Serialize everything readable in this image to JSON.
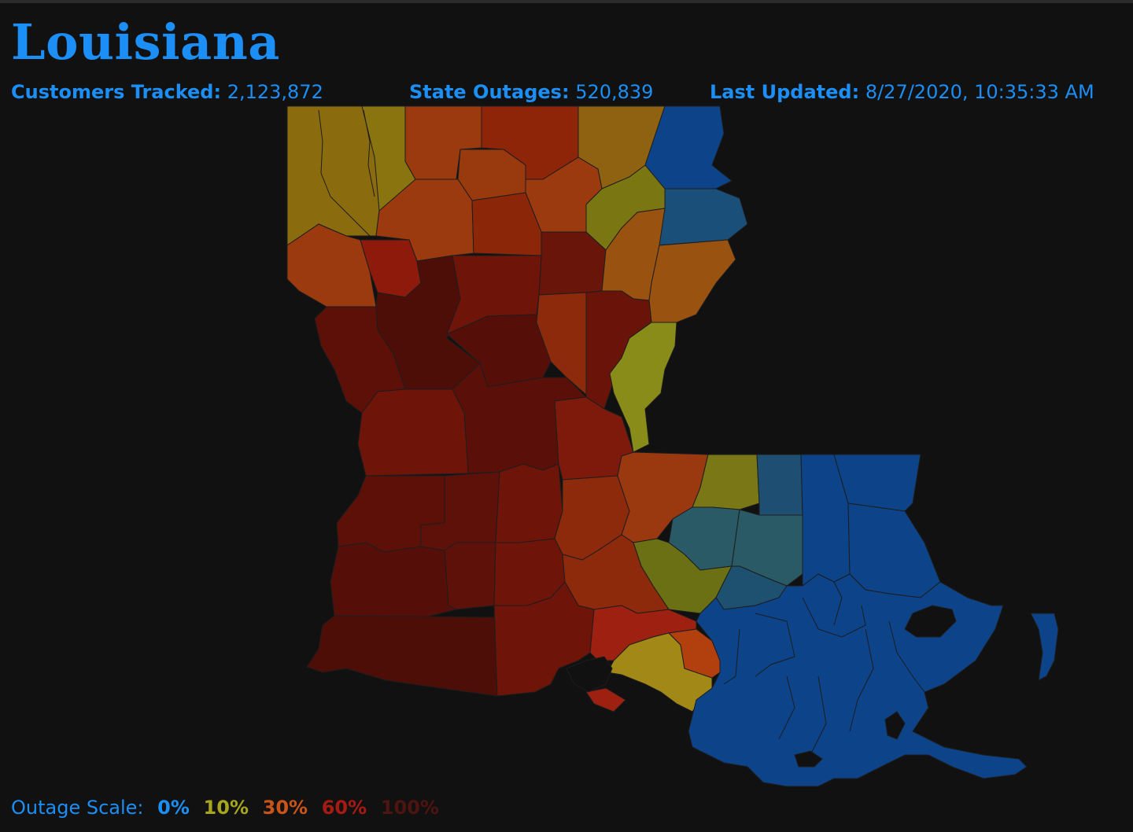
{
  "header": {
    "title": "Louisiana",
    "customers_label": "Customers Tracked:",
    "customers_value": "2,123,872",
    "outages_label": "State Outages:",
    "outages_value": "520,839",
    "updated_label": "Last Updated:",
    "updated_value": "8/27/2020, 10:35:33 AM"
  },
  "legend": {
    "label": "Outage Scale:",
    "items": [
      {
        "text": "0%",
        "color": "#1b8ff5"
      },
      {
        "text": "10%",
        "color": "#a7a51d"
      },
      {
        "text": "30%",
        "color": "#c8541a"
      },
      {
        "text": "60%",
        "color": "#a51a12"
      },
      {
        "text": "100%",
        "color": "#4e1410"
      }
    ]
  },
  "colors": {
    "background": "#111111",
    "accent": "#1b8ff5"
  }
}
